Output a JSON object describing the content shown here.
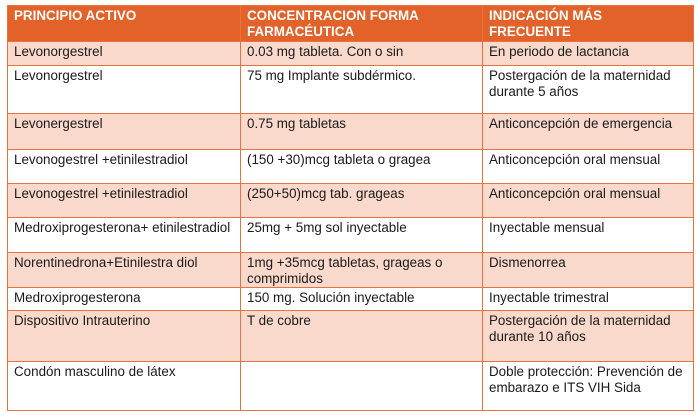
{
  "table": {
    "headers": [
      "PRINCIPIO ACTIVO",
      "CONCENTRACION FORMA FARMACÉUTICA",
      "INDICACIÓN MÁS FRECUENTE"
    ],
    "rows": [
      [
        "Levonorgestrel",
        "0.03 mg tableta. Con o sin",
        "En periodo de lactancia"
      ],
      [
        "Levonorgestrel",
        "75 mg Implante subdérmico.",
        "Postergación de la maternidad durante 5 años"
      ],
      [
        "Levonergestrel",
        "0.75 mg tabletas",
        "Anticoncepción de emergencia"
      ],
      [
        "Levonogestrel +etinilestradiol",
        "(150 +30)mcg tableta o gragea",
        "Anticoncepción oral mensual"
      ],
      [
        "Levonogestrel +etinilestradiol",
        "(250+50)mcg tab. grageas",
        "Anticoncepción oral mensual"
      ],
      [
        "Medroxiprogesterona+ etinilestradiol",
        "25mg + 5mg sol inyectable",
        "Inyectable mensual"
      ],
      [
        "Norentinedrona+Etinilestra diol",
        "1mg +35mcg tabletas, grageas o comprimidos",
        "Dismenorrea"
      ],
      [
        "Medroxiprogesterona",
        "150 mg. Solución inyectable",
        "Inyectable trimestral"
      ],
      [
        "Dispositivo Intrauterino",
        "T de cobre",
        "Postergación de la maternidad durante 10 años"
      ],
      [
        "Condón masculino de látex",
        "",
        "Doble protección: Prevención de embarazo e ITS VIH Sida"
      ]
    ]
  },
  "colors": {
    "header": "#E2622A",
    "stripe": "#F9D9CB",
    "border": "#E8733F"
  }
}
